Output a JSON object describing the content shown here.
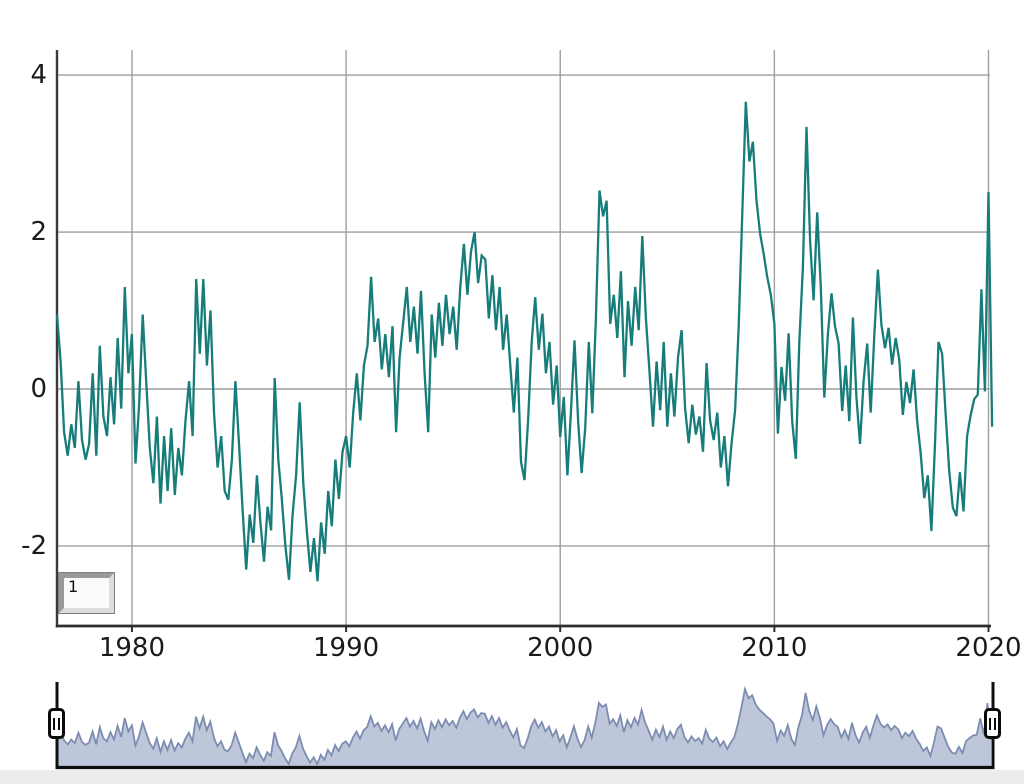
{
  "chart": {
    "series_box_label": "1"
  },
  "colors": {
    "background": "#ffffff",
    "grid": "#9e9e9e",
    "axis": "#3a3a3a",
    "tick_label": "#1a1a1a",
    "footer_strip": "#ececec"
  },
  "chart_data": {
    "type": "line",
    "title": "",
    "xlabel": "",
    "ylabel": "",
    "grid": true,
    "x_ticks": [
      1980,
      1990,
      2000,
      2010,
      2020
    ],
    "y_ticks": [
      4,
      2,
      0,
      -2
    ],
    "x_range": [
      1976.5,
      2020.07
    ],
    "y_range": [
      -3.02,
      4.32
    ],
    "series": [
      {
        "name": "1",
        "color": "#177d7b",
        "x_start": 1976.5,
        "x_step": 0.1666667,
        "values": [
          0.95,
          0.35,
          -0.55,
          -0.85,
          -0.45,
          -0.75,
          0.1,
          -0.65,
          -0.9,
          -0.7,
          0.2,
          -0.85,
          0.55,
          -0.35,
          -0.6,
          0.15,
          -0.45,
          0.65,
          -0.25,
          1.3,
          0.2,
          0.7,
          -0.95,
          -0.2,
          0.95,
          0.1,
          -0.75,
          -1.2,
          -0.35,
          -1.46,
          -0.6,
          -1.3,
          -0.5,
          -1.35,
          -0.75,
          -1.1,
          -0.4,
          0.1,
          -0.6,
          1.4,
          0.45,
          1.4,
          0.3,
          1.0,
          -0.3,
          -1.0,
          -0.6,
          -1.3,
          -1.41,
          -0.9,
          0.1,
          -0.7,
          -1.54,
          -2.3,
          -1.6,
          -1.96,
          -1.1,
          -1.7,
          -2.2,
          -1.5,
          -1.8,
          0.14,
          -0.9,
          -1.4,
          -2.0,
          -2.43,
          -1.6,
          -1.1,
          -0.17,
          -1.2,
          -1.8,
          -2.33,
          -1.9,
          -2.45,
          -1.7,
          -2.1,
          -1.3,
          -1.75,
          -0.9,
          -1.4,
          -0.8,
          -0.6,
          -1.0,
          -0.3,
          0.2,
          -0.4,
          0.3,
          0.55,
          1.43,
          0.6,
          0.9,
          0.25,
          0.7,
          0.15,
          0.8,
          -0.55,
          0.4,
          0.85,
          1.3,
          0.6,
          1.05,
          0.45,
          1.25,
          0.2,
          -0.55,
          0.95,
          0.4,
          1.1,
          0.55,
          1.2,
          0.7,
          1.05,
          0.5,
          1.3,
          1.85,
          1.2,
          1.75,
          2.0,
          1.35,
          1.7,
          1.65,
          0.9,
          1.45,
          0.75,
          1.3,
          0.5,
          0.95,
          0.3,
          -0.3,
          0.4,
          -0.93,
          -1.16,
          -0.4,
          0.6,
          1.17,
          0.5,
          0.96,
          0.2,
          0.6,
          -0.2,
          0.3,
          -0.61,
          -0.1,
          -1.1,
          -0.3,
          0.62,
          -0.4,
          -1.07,
          -0.5,
          0.6,
          -0.31,
          0.9,
          2.53,
          2.2,
          2.4,
          0.83,
          1.2,
          0.65,
          1.5,
          0.15,
          1.12,
          0.55,
          1.3,
          0.75,
          1.95,
          0.9,
          0.24,
          -0.48,
          0.35,
          -0.27,
          0.6,
          -0.48,
          0.2,
          -0.35,
          0.4,
          0.75,
          -0.25,
          -0.69,
          -0.2,
          -0.58,
          -0.35,
          -0.8,
          0.33,
          -0.4,
          -0.65,
          -0.3,
          -1.0,
          -0.6,
          -1.24,
          -0.7,
          -0.27,
          0.8,
          2.2,
          3.66,
          2.9,
          3.15,
          2.4,
          1.98,
          1.72,
          1.43,
          1.2,
          0.83,
          -0.57,
          0.28,
          -0.15,
          0.71,
          -0.41,
          -0.89,
          0.6,
          1.55,
          3.34,
          1.89,
          1.13,
          2.25,
          1.3,
          -0.11,
          0.7,
          1.22,
          0.8,
          0.58,
          -0.28,
          0.3,
          -0.41,
          0.91,
          -0.1,
          -0.7,
          0.1,
          0.58,
          -0.3,
          0.68,
          1.52,
          0.82,
          0.52,
          0.78,
          0.31,
          0.65,
          0.37,
          -0.33,
          0.09,
          -0.18,
          0.25,
          -0.4,
          -0.82,
          -1.39,
          -1.1,
          -1.81,
          -0.7,
          0.6,
          0.45,
          -0.33,
          -1.04,
          -1.51,
          -1.62,
          -1.06,
          -1.56,
          -0.6,
          -0.33,
          -0.13,
          -0.07,
          1.27,
          -0.03,
          2.51,
          -0.48
        ]
      }
    ],
    "navigator": {
      "visible": true,
      "area_fill": "#b7c0d6",
      "area_line": "#7d8db1",
      "frame_color": "#0f0f0f",
      "selected_range_full": true
    }
  }
}
